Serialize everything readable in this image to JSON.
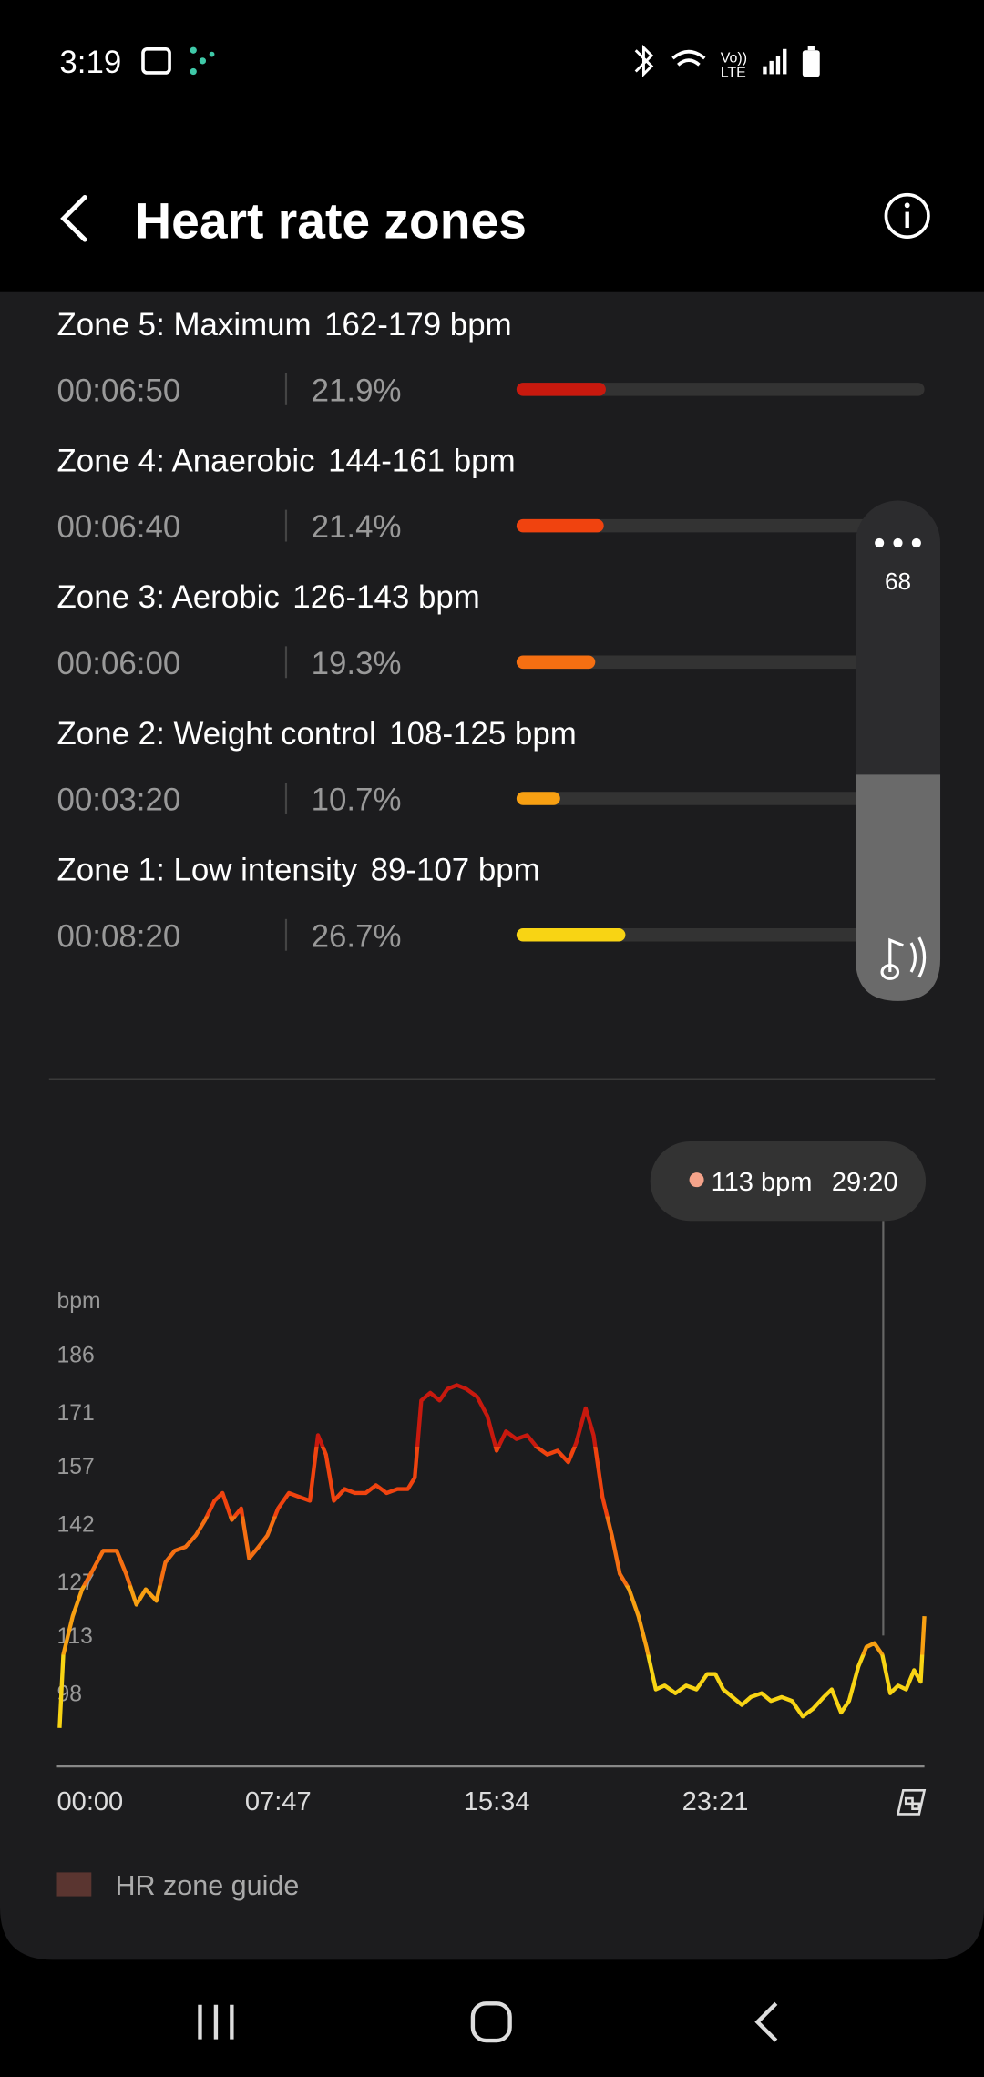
{
  "status_bar": {
    "time": "3:19"
  },
  "header": {
    "title": "Heart rate zones"
  },
  "zones": [
    {
      "name": "Zone 5: Maximum",
      "range": "162-179 bpm",
      "time": "00:06:50",
      "percent": 21.9,
      "percent_label": "21.9%",
      "color": "#c8190e"
    },
    {
      "name": "Zone 4: Anaerobic",
      "range": "144-161 bpm",
      "time": "00:06:40",
      "percent": 21.4,
      "percent_label": "21.4%",
      "color": "#f0430f"
    },
    {
      "name": "Zone 3: Aerobic",
      "range": "126-143 bpm",
      "time": "00:06:00",
      "percent": 19.3,
      "percent_label": "19.3%",
      "color": "#f56f12"
    },
    {
      "name": "Zone 2: Weight control",
      "range": "108-125 bpm",
      "time": "00:03:20",
      "percent": 10.7,
      "percent_label": "10.7%",
      "color": "#f8a012"
    },
    {
      "name": "Zone 1: Low intensity",
      "range": "89-107 bpm",
      "time": "00:08:20",
      "percent": 26.7,
      "percent_label": "26.7%",
      "color": "#f8d414"
    }
  ],
  "volume": {
    "level": "68"
  },
  "chart_data": {
    "type": "line",
    "ylabel": "bpm",
    "x": [
      0,
      8,
      28,
      48,
      71,
      93,
      122,
      142,
      164,
      184,
      207,
      226,
      246,
      269,
      291,
      311,
      331,
      348,
      368,
      388,
      405,
      425,
      444,
      467,
      490,
      512,
      535,
      552,
      569,
      586,
      609,
      631,
      654,
      676,
      699,
      722,
      744,
      759,
      773,
      792,
      812,
      829,
      849,
      869,
      892,
      914,
      934,
      954,
      976,
      999,
      1019,
      1042,
      1064,
      1087,
      1104,
      1124,
      1141,
      1160,
      1180,
      1197,
      1217,
      1237,
      1254,
      1274,
      1293,
      1316,
      1339,
      1361,
      1384,
      1401,
      1418,
      1438,
      1458,
      1477,
      1500,
      1520,
      1543,
      1565,
      1588,
      1610,
      1633,
      1650,
      1670,
      1687,
      1707,
      1724,
      1741,
      1758,
      1775,
      1792,
      1809,
      1826,
      1840,
      1848
    ],
    "values": [
      89,
      108,
      118,
      125,
      130,
      135,
      135,
      129,
      121,
      125,
      122,
      132,
      135,
      136,
      139,
      143,
      148,
      150,
      143,
      146,
      133,
      136,
      139,
      146,
      150,
      149,
      148,
      165,
      160,
      148,
      151,
      150,
      150,
      152,
      150,
      151,
      151,
      154,
      174,
      176,
      174,
      177,
      178,
      177,
      175,
      170,
      161,
      166,
      164,
      165,
      162,
      160,
      161,
      158,
      163,
      172,
      165,
      149,
      139,
      129,
      125,
      118,
      110,
      99,
      100,
      98,
      100,
      99,
      103,
      103,
      99,
      97,
      95,
      97,
      98,
      96,
      97,
      96,
      92,
      94,
      97,
      99,
      93,
      96,
      105,
      110,
      111,
      108,
      98,
      100,
      99,
      104,
      101,
      118
    ],
    "xlim": [
      0,
      1848
    ],
    "ylim": [
      79,
      200
    ],
    "yticks": [
      98,
      113,
      127,
      142,
      157,
      171,
      186
    ],
    "xticks": [
      {
        "value": 0,
        "label": "00:00"
      },
      {
        "value": 467,
        "label": "07:47"
      },
      {
        "value": 934,
        "label": "15:34"
      },
      {
        "value": 1401,
        "label": "23:21"
      }
    ],
    "tooltip": {
      "value": 113,
      "label": "113 bpm",
      "x": {
        "value": 1760,
        "label": "29:20"
      }
    }
  },
  "legend": {
    "label": "HR zone guide"
  }
}
